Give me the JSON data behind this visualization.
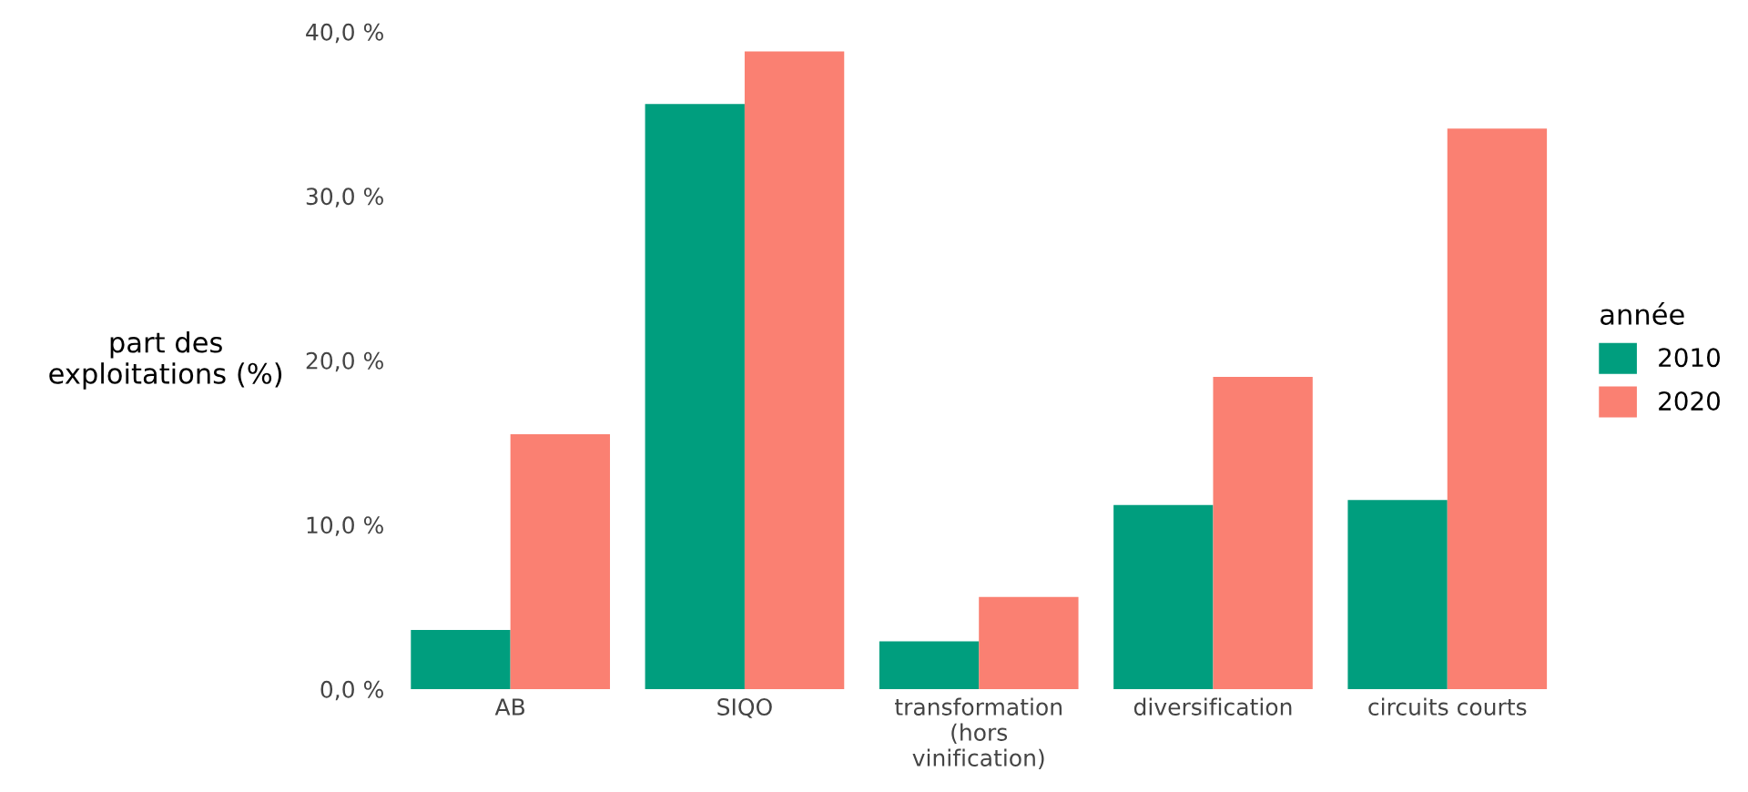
{
  "chart_data": {
    "type": "bar",
    "ylabel": "part des\nexploitations (%)",
    "legend_title": "année",
    "categories": [
      "AB",
      "SIQO",
      "transformation\n(hors\nvinification)",
      "diversification",
      "circuits courts"
    ],
    "series": [
      {
        "name": "2010",
        "color": "#009e7e",
        "values": [
          3.6,
          35.6,
          2.9,
          11.2,
          11.5
        ]
      },
      {
        "name": "2020",
        "color": "#fa8072",
        "values": [
          15.5,
          38.8,
          5.6,
          19.0,
          34.1
        ]
      }
    ],
    "ylim": [
      0,
      40
    ],
    "yticks": [
      {
        "value": 0,
        "label": "0,0 %"
      },
      {
        "value": 10,
        "label": "10,0 %"
      },
      {
        "value": 20,
        "label": "20,0 %"
      },
      {
        "value": 30,
        "label": "30,0 %"
      },
      {
        "value": 40,
        "label": "40,0 %"
      }
    ],
    "grid": false,
    "legend": "right"
  }
}
